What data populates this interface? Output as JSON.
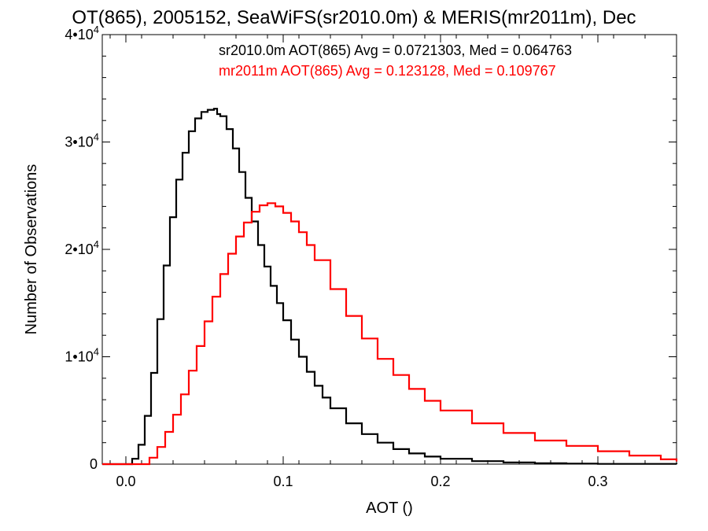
{
  "chart_data": {
    "type": "line",
    "title": "OT(865), 2005152, SeaWiFS(sr2010.0m) & MERIS(mr2011m), Dec",
    "xlabel": "AOT ()",
    "ylabel": "Number of Observations",
    "xlim": [
      -0.015,
      0.35
    ],
    "ylim": [
      0,
      40000
    ],
    "x_ticks": [
      0.0,
      0.1,
      0.2,
      0.3
    ],
    "x_tick_labels": [
      "0.0",
      "0.1",
      "0.2",
      "0.3"
    ],
    "y_ticks": [
      0,
      10000,
      20000,
      30000,
      40000
    ],
    "y_tick_labels": [
      {
        "mantissa": "0",
        "exponent": ""
      },
      {
        "mantissa": "1•10",
        "exponent": "4"
      },
      {
        "mantissa": "2•10",
        "exponent": "4"
      },
      {
        "mantissa": "3•10",
        "exponent": "4"
      },
      {
        "mantissa": "4•10",
        "exponent": "4"
      }
    ],
    "grid": false,
    "annotations": [
      {
        "text": "sr2010.0m AOT(865) Avg = 0.0721303, Med = 0.064763",
        "color": "#000000"
      },
      {
        "text": "mr2011m AOT(865) Avg = 0.123128, Med = 0.109767",
        "color": "#ff0000"
      }
    ],
    "series": [
      {
        "color": "#000000",
        "x": [
          -0.015,
          0.0,
          0.004,
          0.008,
          0.012,
          0.016,
          0.02,
          0.024,
          0.028,
          0.032,
          0.036,
          0.04,
          0.044,
          0.048,
          0.052,
          0.056,
          0.058,
          0.06,
          0.064,
          0.068,
          0.072,
          0.076,
          0.08,
          0.084,
          0.088,
          0.092,
          0.096,
          0.1,
          0.105,
          0.11,
          0.115,
          0.12,
          0.125,
          0.13,
          0.14,
          0.15,
          0.16,
          0.17,
          0.18,
          0.19,
          0.2,
          0.22,
          0.24,
          0.26,
          0.28,
          0.3,
          0.35
        ],
        "y": [
          0,
          0,
          500,
          1800,
          4500,
          8500,
          13500,
          18500,
          23000,
          26500,
          29000,
          31000,
          32200,
          32800,
          33000,
          33100,
          32600,
          32400,
          31200,
          29400,
          27200,
          24800,
          22600,
          20400,
          18400,
          16600,
          15000,
          13400,
          11600,
          10000,
          8600,
          7300,
          6200,
          5200,
          3800,
          2800,
          2000,
          1400,
          1000,
          700,
          500,
          280,
          160,
          90,
          50,
          25,
          0
        ]
      },
      {
        "color": "#ff0000",
        "x": [
          -0.015,
          0.01,
          0.015,
          0.02,
          0.025,
          0.03,
          0.035,
          0.04,
          0.045,
          0.05,
          0.055,
          0.06,
          0.065,
          0.07,
          0.075,
          0.08,
          0.085,
          0.09,
          0.095,
          0.1,
          0.105,
          0.11,
          0.115,
          0.12,
          0.13,
          0.14,
          0.15,
          0.16,
          0.17,
          0.18,
          0.19,
          0.2,
          0.22,
          0.24,
          0.26,
          0.28,
          0.3,
          0.32,
          0.34,
          0.35
        ],
        "y": [
          0,
          0,
          600,
          1600,
          3000,
          4600,
          6500,
          8700,
          11000,
          13300,
          15600,
          17700,
          19600,
          21200,
          22500,
          23500,
          24100,
          24300,
          24000,
          23400,
          22600,
          21600,
          20400,
          19000,
          16300,
          13800,
          11700,
          9800,
          8300,
          7000,
          5900,
          5000,
          3800,
          2900,
          2200,
          1700,
          1200,
          800,
          450,
          250
        ]
      }
    ]
  }
}
